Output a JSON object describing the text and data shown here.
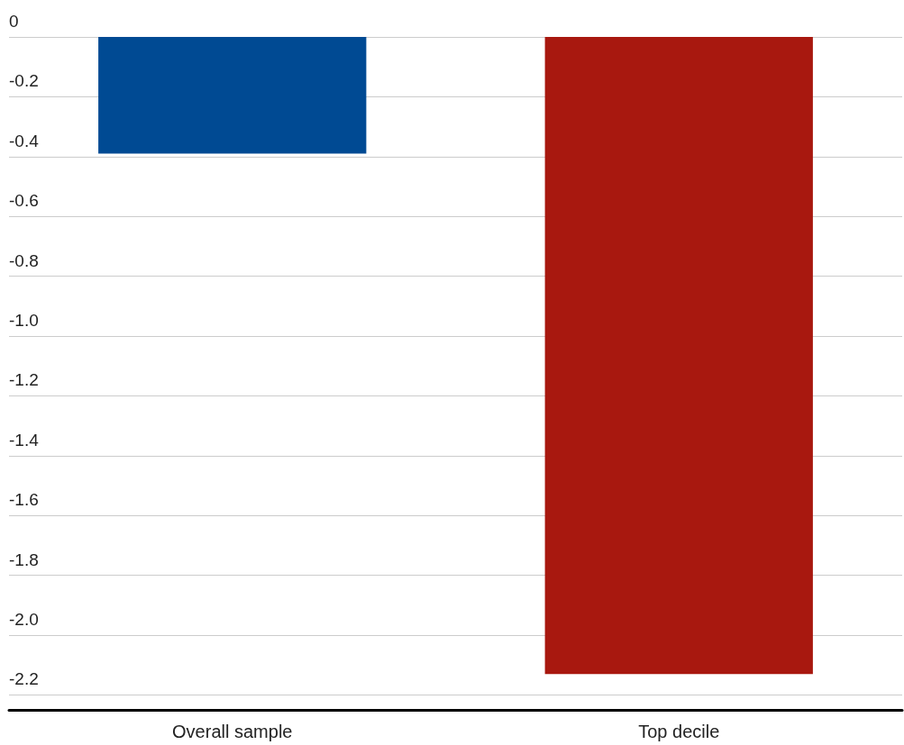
{
  "chart_data": {
    "type": "bar",
    "categories": [
      "Overall sample",
      "Top decile"
    ],
    "values": [
      -0.39,
      -2.13
    ],
    "colors": [
      "#004a93",
      "#a8180f"
    ],
    "ylim": [
      -2.25,
      0
    ],
    "yticks": [
      {
        "value": 0,
        "label": "0"
      },
      {
        "value": -0.2,
        "label": "-0.2"
      },
      {
        "value": -0.4,
        "label": "-0.4"
      },
      {
        "value": -0.6,
        "label": "-0.6"
      },
      {
        "value": -0.8,
        "label": "-0.8"
      },
      {
        "value": -1,
        "label": "-1.0"
      },
      {
        "value": -1.2,
        "label": "-1.2"
      },
      {
        "value": -1.4,
        "label": "-1.4"
      },
      {
        "value": -1.6,
        "label": "-1.6"
      },
      {
        "value": -1.8,
        "label": "-1.8"
      },
      {
        "value": -2,
        "label": "-2.0"
      },
      {
        "value": -2.2,
        "label": "-2.2"
      }
    ],
    "grid": true
  }
}
